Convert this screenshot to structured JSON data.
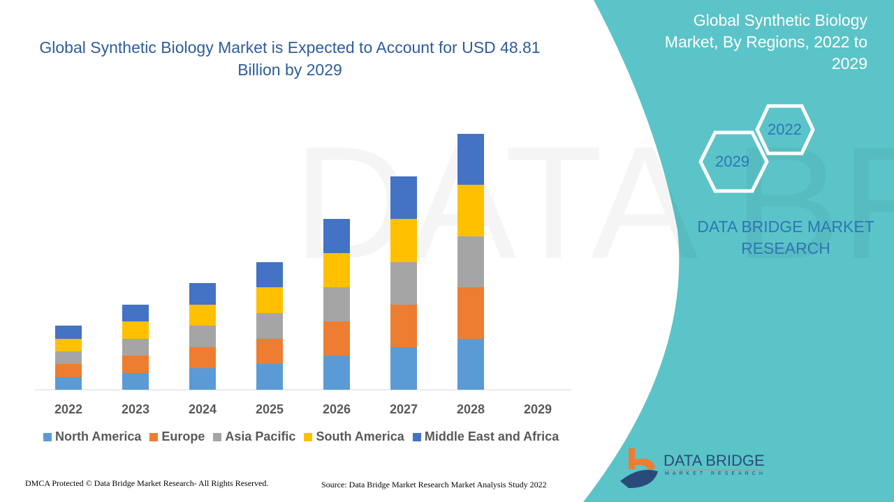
{
  "header": {
    "title": "Global Synthetic Biology Market is Expected to Account for USD 48.81 Billion by 2029"
  },
  "side_panel": {
    "title": "Global Synthetic Biology Market, By Regions, 2022 to 2029",
    "hex_years": [
      "2022",
      "2029"
    ],
    "brand": "DATA BRIDGE MARKET RESEARCH",
    "logo_text": "DATA BRIDGE",
    "logo_subtext": "MARKET RESEARCH",
    "panel_color": "#5bc4c8"
  },
  "footer": {
    "copyright": "DMCA Protected © Data Bridge Market Research- All Rights Reserved.",
    "source": "Source: Data Bridge Market Research Market Analysis Study 2022"
  },
  "chart_data": {
    "type": "bar",
    "stacked": true,
    "title": "Global Synthetic Biology Market is Expected to Account for USD 48.81 Billion by 2029",
    "categories": [
      "2022",
      "2023",
      "2024",
      "2025",
      "2026",
      "2027",
      "2028",
      "2029"
    ],
    "ylim": [
      0,
      40
    ],
    "grid": false,
    "y_axis_shown": false,
    "legend_placement": "bottom",
    "series": [
      {
        "name": "North America",
        "color": "#5b9bd5",
        "values": [
          1.8,
          2.4,
          3.1,
          3.7,
          4.9,
          6.1,
          7.3,
          null
        ]
      },
      {
        "name": "Europe",
        "color": "#ed7d31",
        "values": [
          1.9,
          2.5,
          3.0,
          3.6,
          4.9,
          6.1,
          7.4,
          null
        ]
      },
      {
        "name": "Asia Pacific",
        "color": "#a5a5a5",
        "values": [
          1.8,
          2.4,
          3.1,
          3.7,
          4.9,
          6.1,
          7.3,
          null
        ]
      },
      {
        "name": "South America",
        "color": "#ffc000",
        "values": [
          1.8,
          2.5,
          3.0,
          3.7,
          4.9,
          6.2,
          7.4,
          null
        ]
      },
      {
        "name": "Middle East and Africa",
        "color": "#4472c4",
        "values": [
          1.9,
          2.4,
          3.1,
          3.6,
          4.9,
          6.1,
          7.3,
          null
        ]
      }
    ]
  }
}
